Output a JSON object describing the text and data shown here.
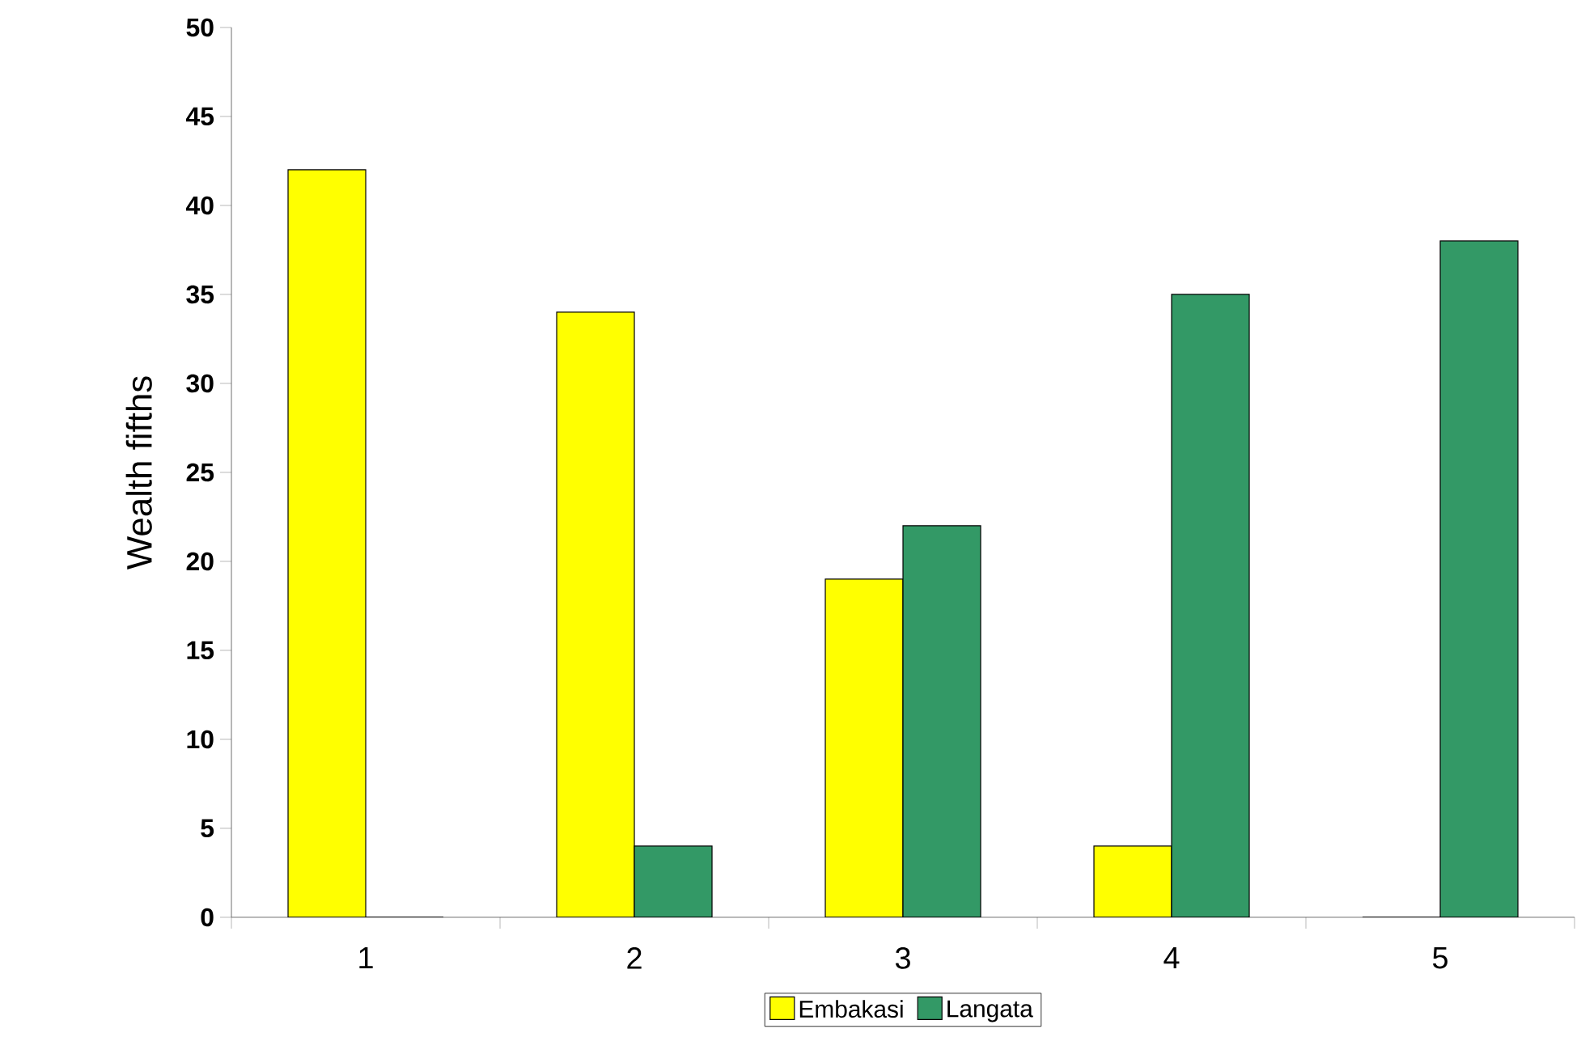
{
  "chart_data": {
    "type": "bar",
    "ylabel": "Wealth fifths",
    "categories": [
      "1",
      "2",
      "3",
      "4",
      "5"
    ],
    "series": [
      {
        "name": "Embakasi",
        "color": "#ffff00",
        "values": [
          42,
          34,
          19,
          4,
          0
        ]
      },
      {
        "name": "Langata",
        "color": "#339966",
        "values": [
          0,
          4,
          22,
          35,
          38
        ]
      }
    ],
    "ylim": [
      0,
      50
    ],
    "yticks": [
      0,
      5,
      10,
      15,
      20,
      25,
      30,
      35,
      40,
      45,
      50
    ],
    "legend": "bottom"
  }
}
